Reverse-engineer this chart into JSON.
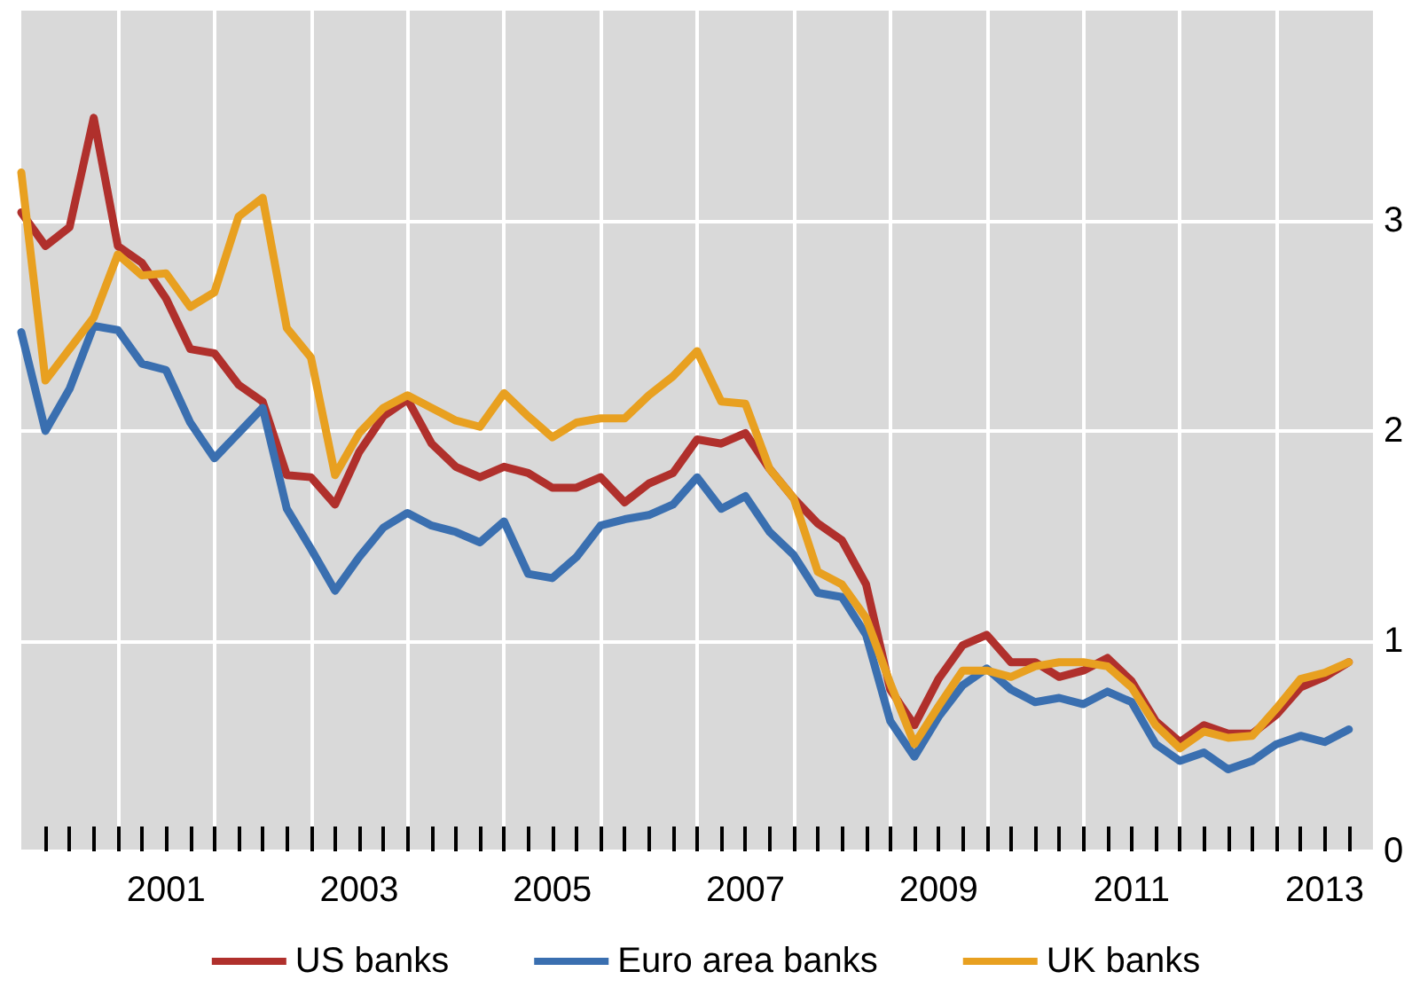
{
  "chart_data": {
    "type": "line",
    "x": [
      2000,
      2000.25,
      2000.5,
      2000.75,
      2001,
      2001.25,
      2001.5,
      2001.75,
      2002,
      2002.25,
      2002.5,
      2002.75,
      2003,
      2003.25,
      2003.5,
      2003.75,
      2004,
      2004.25,
      2004.5,
      2004.75,
      2005,
      2005.25,
      2005.5,
      2005.75,
      2006,
      2006.25,
      2006.5,
      2006.75,
      2007,
      2007.25,
      2007.5,
      2007.75,
      2008,
      2008.25,
      2008.5,
      2008.75,
      2009,
      2009.25,
      2009.5,
      2009.75,
      2010,
      2010.25,
      2010.5,
      2010.75,
      2011,
      2011.25,
      2011.5,
      2011.75,
      2012,
      2012.25,
      2012.5,
      2012.75,
      2013,
      2013.25,
      2013.5,
      2013.75
    ],
    "series": [
      {
        "name": "US banks",
        "color": "#b0302c",
        "values": [
          3.04,
          2.88,
          2.97,
          3.49,
          2.88,
          2.8,
          2.63,
          2.39,
          2.37,
          2.22,
          2.14,
          1.79,
          1.78,
          1.65,
          1.9,
          2.07,
          2.15,
          1.94,
          1.83,
          1.78,
          1.83,
          1.8,
          1.73,
          1.73,
          1.78,
          1.66,
          1.75,
          1.8,
          1.96,
          1.94,
          1.99,
          1.82,
          1.68,
          1.56,
          1.48,
          1.27,
          0.77,
          0.6,
          0.82,
          0.98,
          1.03,
          0.9,
          0.9,
          0.83,
          0.86,
          0.92,
          0.81,
          0.62,
          0.52,
          0.6,
          0.56,
          0.56,
          0.65,
          0.78,
          0.83,
          0.9
        ]
      },
      {
        "name": "Euro area banks",
        "color": "#3a6fb0",
        "values": [
          2.47,
          2.0,
          2.2,
          2.5,
          2.48,
          2.32,
          2.29,
          2.04,
          1.87,
          1.99,
          2.11,
          1.63,
          1.44,
          1.24,
          1.4,
          1.54,
          1.61,
          1.55,
          1.52,
          1.47,
          1.57,
          1.32,
          1.3,
          1.4,
          1.55,
          1.58,
          1.6,
          1.65,
          1.78,
          1.63,
          1.69,
          1.52,
          1.41,
          1.23,
          1.21,
          1.03,
          0.62,
          0.45,
          0.64,
          0.79,
          0.87,
          0.77,
          0.71,
          0.73,
          0.7,
          0.76,
          0.71,
          0.51,
          0.43,
          0.47,
          0.39,
          0.43,
          0.51,
          0.55,
          0.52,
          0.58
        ]
      },
      {
        "name": "UK banks",
        "color": "#e8a020",
        "values": [
          3.23,
          2.24,
          2.39,
          2.54,
          2.84,
          2.74,
          2.75,
          2.59,
          2.66,
          3.02,
          3.11,
          2.49,
          2.35,
          1.79,
          1.99,
          2.11,
          2.17,
          2.11,
          2.05,
          2.02,
          2.18,
          2.07,
          1.97,
          2.04,
          2.06,
          2.06,
          2.17,
          2.26,
          2.38,
          2.14,
          2.13,
          1.82,
          1.68,
          1.33,
          1.27,
          1.11,
          0.8,
          0.51,
          0.69,
          0.86,
          0.86,
          0.83,
          0.88,
          0.9,
          0.9,
          0.88,
          0.78,
          0.6,
          0.49,
          0.57,
          0.54,
          0.55,
          0.68,
          0.82,
          0.85,
          0.9
        ]
      }
    ],
    "xlim": [
      2000,
      2014
    ],
    "xticks": [
      {
        "value": 2001,
        "label": null
      },
      {
        "value": 2002,
        "label": null
      },
      {
        "value": 2003,
        "label": null
      },
      {
        "value": 2004,
        "label": null
      },
      {
        "value": 2005,
        "label": null
      },
      {
        "value": 2006,
        "label": null
      },
      {
        "value": 2007,
        "label": null
      },
      {
        "value": 2008,
        "label": null
      },
      {
        "value": 2009,
        "label": null
      },
      {
        "value": 2010,
        "label": null
      },
      {
        "value": 2011,
        "label": null
      },
      {
        "value": 2012,
        "label": null
      },
      {
        "value": 2013,
        "label": null
      },
      {
        "value": 2000.25,
        "label": null
      },
      {
        "value": 2000.5,
        "label": null
      },
      {
        "value": 2000.75,
        "label": null
      },
      {
        "value": 2001.25,
        "label": null
      },
      {
        "value": 2001.5,
        "label": null
      },
      {
        "value": 2001.75,
        "label": null
      },
      {
        "value": 2002.25,
        "label": null
      },
      {
        "value": 2002.5,
        "label": null
      },
      {
        "value": 2002.75,
        "label": null
      },
      {
        "value": 2003.25,
        "label": null
      },
      {
        "value": 2003.5,
        "label": null
      },
      {
        "value": 2003.75,
        "label": null
      },
      {
        "value": 2004.25,
        "label": null
      },
      {
        "value": 2004.5,
        "label": null
      },
      {
        "value": 2004.75,
        "label": null
      },
      {
        "value": 2005.25,
        "label": null
      },
      {
        "value": 2005.5,
        "label": null
      },
      {
        "value": 2005.75,
        "label": null
      },
      {
        "value": 2006.25,
        "label": null
      },
      {
        "value": 2006.5,
        "label": null
      },
      {
        "value": 2006.75,
        "label": null
      },
      {
        "value": 2007.25,
        "label": null
      },
      {
        "value": 2007.5,
        "label": null
      },
      {
        "value": 2007.75,
        "label": null
      },
      {
        "value": 2008.25,
        "label": null
      },
      {
        "value": 2008.5,
        "label": null
      },
      {
        "value": 2008.75,
        "label": null
      },
      {
        "value": 2009.25,
        "label": null
      },
      {
        "value": 2009.5,
        "label": null
      },
      {
        "value": 2009.75,
        "label": null
      },
      {
        "value": 2010.25,
        "label": null
      },
      {
        "value": 2010.5,
        "label": null
      },
      {
        "value": 2010.75,
        "label": null
      },
      {
        "value": 2011.25,
        "label": null
      },
      {
        "value": 2011.5,
        "label": null
      },
      {
        "value": 2011.75,
        "label": null
      },
      {
        "value": 2012.25,
        "label": null
      },
      {
        "value": 2012.5,
        "label": null
      },
      {
        "value": 2012.75,
        "label": null
      },
      {
        "value": 2013.25,
        "label": null
      },
      {
        "value": 2013.5,
        "label": null
      },
      {
        "value": 2013.75,
        "label": null
      },
      {
        "value": 2001.5,
        "label": "2001"
      },
      {
        "value": 2003.5,
        "label": "2003"
      },
      {
        "value": 2005.5,
        "label": "2005"
      },
      {
        "value": 2007.5,
        "label": "2007"
      },
      {
        "value": 2009.5,
        "label": "2009"
      },
      {
        "value": 2011.5,
        "label": "2011"
      },
      {
        "value": 2013.5,
        "label": "2013"
      }
    ],
    "ylim": [
      0,
      4
    ],
    "yticks": [
      0,
      1,
      2,
      3
    ],
    "grid": true,
    "legend": "bottom",
    "marker": "none",
    "line_style": "solid"
  }
}
